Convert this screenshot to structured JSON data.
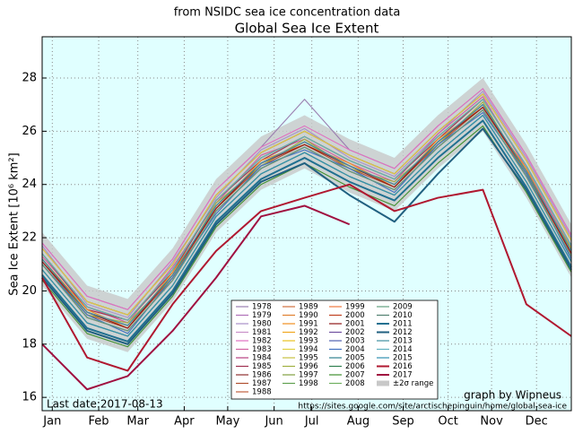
{
  "chart_data": {
    "type": "line",
    "subtitle": "from NSIDC sea ice concentration data",
    "title": "Global Sea Ice Extent",
    "ylabel": "Sea Ice Extent [10⁶ km²]",
    "annotations": [
      "Last date:2017-08-13",
      "graph by Wipneus",
      "https://sites.google.com/site/arctischepinguin/home/global-sea-ice"
    ],
    "x": [
      0,
      31,
      59,
      90,
      120,
      151,
      181,
      212,
      243,
      273,
      304,
      334,
      365
    ],
    "xlim": [
      0,
      365
    ],
    "xticks": [
      {
        "value": 7,
        "label": "Jan"
      },
      {
        "value": 39,
        "label": "Feb"
      },
      {
        "value": 66,
        "label": "Mar"
      },
      {
        "value": 98,
        "label": "Apr"
      },
      {
        "value": 128,
        "label": "May"
      },
      {
        "value": 160,
        "label": "Jun"
      },
      {
        "value": 186,
        "label": "Jul"
      },
      {
        "value": 218,
        "label": "Aug"
      },
      {
        "value": 249,
        "label": "Sep"
      },
      {
        "value": 280,
        "label": "Oct"
      },
      {
        "value": 310,
        "label": "Nov"
      },
      {
        "value": 341,
        "label": "Dec"
      }
    ],
    "ylim": [
      15.5,
      29.55
    ],
    "yticks": [
      16,
      18,
      20,
      22,
      24,
      26,
      28
    ],
    "grid": true,
    "band": {
      "name": "±2σ range",
      "color": "#c8c8c8",
      "upper": [
        22.2,
        20.2,
        19.7,
        21.6,
        24.2,
        25.8,
        26.6,
        25.7,
        25.0,
        26.6,
        28.0,
        25.5,
        22.5
      ],
      "lower": [
        20.2,
        18.2,
        17.7,
        19.6,
        22.2,
        23.8,
        24.6,
        23.7,
        23.0,
        24.6,
        26.0,
        23.5,
        20.5
      ]
    },
    "series": [
      {
        "name": "1978",
        "color": "#9a7fb0",
        "values": [
          21.8,
          19.8,
          19.3,
          21.2,
          23.8,
          25.4,
          27.2,
          25.3,
          24.6,
          26.2,
          27.6,
          25.1,
          22.1
        ]
      },
      {
        "name": "1979",
        "color": "#b070b8",
        "values": [
          21.6,
          19.6,
          19.1,
          21.0,
          23.6,
          25.2,
          26.0,
          25.1,
          24.4,
          26.0,
          27.4,
          24.9,
          21.9
        ]
      },
      {
        "name": "1980",
        "color": "#a890c8",
        "values": [
          21.7,
          19.5,
          19.0,
          21.1,
          23.5,
          25.3,
          26.1,
          25.0,
          24.3,
          25.9,
          27.5,
          25.0,
          22.0
        ]
      },
      {
        "name": "1981",
        "color": "#c890c8",
        "values": [
          21.4,
          19.4,
          18.9,
          20.8,
          23.4,
          25.0,
          25.8,
          24.9,
          24.2,
          25.8,
          27.2,
          24.7,
          21.7
        ]
      },
      {
        "name": "1982",
        "color": "#e070c0",
        "values": [
          21.8,
          19.8,
          19.3,
          21.2,
          23.8,
          25.4,
          26.2,
          25.3,
          24.6,
          26.2,
          27.6,
          25.1,
          22.1
        ]
      },
      {
        "name": "1983",
        "color": "#d060a0",
        "values": [
          21.3,
          19.4,
          18.8,
          20.9,
          23.3,
          25.1,
          25.7,
          24.8,
          24.1,
          25.9,
          27.3,
          24.6,
          21.6
        ]
      },
      {
        "name": "1984",
        "color": "#b84080",
        "values": [
          21.2,
          19.2,
          18.7,
          20.6,
          23.2,
          24.8,
          25.6,
          24.7,
          24.0,
          25.6,
          27.0,
          24.5,
          21.5
        ]
      },
      {
        "name": "1985",
        "color": "#a03050",
        "values": [
          21.4,
          19.3,
          18.9,
          20.7,
          23.4,
          24.9,
          25.8,
          24.9,
          24.2,
          25.7,
          27.2,
          24.7,
          21.7
        ]
      },
      {
        "name": "1986",
        "color": "#903030",
        "values": [
          21.6,
          19.6,
          19.1,
          21.0,
          23.6,
          25.2,
          26.0,
          25.1,
          24.4,
          26.0,
          27.4,
          24.9,
          21.9
        ]
      },
      {
        "name": "1987",
        "color": "#b05030",
        "values": [
          21.1,
          19.1,
          18.6,
          20.5,
          23.1,
          24.7,
          25.5,
          24.6,
          23.9,
          25.5,
          26.9,
          24.4,
          21.4
        ]
      },
      {
        "name": "1988",
        "color": "#c06040",
        "values": [
          21.4,
          19.4,
          18.9,
          20.8,
          23.4,
          25.0,
          25.8,
          24.9,
          24.2,
          25.8,
          27.2,
          24.7,
          21.7
        ]
      },
      {
        "name": "1989",
        "color": "#d07040",
        "values": [
          21.2,
          19.2,
          18.7,
          20.6,
          23.2,
          24.8,
          25.6,
          24.7,
          24.0,
          25.6,
          27.0,
          24.5,
          21.5
        ]
      },
      {
        "name": "1990",
        "color": "#e08030",
        "values": [
          21.4,
          19.4,
          18.9,
          20.8,
          23.4,
          25.0,
          25.8,
          24.9,
          24.2,
          25.8,
          27.2,
          24.7,
          21.7
        ]
      },
      {
        "name": "1991",
        "color": "#f09020",
        "values": [
          21.2,
          19.3,
          18.6,
          20.7,
          23.1,
          24.9,
          25.5,
          24.8,
          23.9,
          25.7,
          26.9,
          24.6,
          21.4
        ]
      },
      {
        "name": "1992",
        "color": "#f0a820",
        "values": [
          21.4,
          19.4,
          18.9,
          20.8,
          23.4,
          25.0,
          25.8,
          24.9,
          24.2,
          25.8,
          27.2,
          24.7,
          21.7
        ]
      },
      {
        "name": "1993",
        "color": "#e8c020",
        "values": [
          21.2,
          19.2,
          18.7,
          20.6,
          23.2,
          24.8,
          25.6,
          24.7,
          24.0,
          25.6,
          27.0,
          24.5,
          21.5
        ]
      },
      {
        "name": "1994",
        "color": "#e0d040",
        "values": [
          21.6,
          19.6,
          19.1,
          21.0,
          23.6,
          25.2,
          26.0,
          25.1,
          24.4,
          26.0,
          27.4,
          24.9,
          21.9
        ]
      },
      {
        "name": "1995",
        "color": "#c8c040",
        "values": [
          21.0,
          19.0,
          18.5,
          20.4,
          23.0,
          24.6,
          25.4,
          24.5,
          23.8,
          25.4,
          26.8,
          24.3,
          21.3
        ]
      },
      {
        "name": "1996",
        "color": "#a0b040",
        "values": [
          21.2,
          19.1,
          18.8,
          20.5,
          23.3,
          24.7,
          25.7,
          24.6,
          24.1,
          25.5,
          27.1,
          24.4,
          21.6
        ]
      },
      {
        "name": "1997",
        "color": "#80a040",
        "values": [
          21.0,
          19.0,
          18.5,
          20.4,
          23.0,
          24.6,
          25.4,
          24.5,
          23.8,
          25.4,
          26.8,
          24.3,
          21.3
        ]
      },
      {
        "name": "1998",
        "color": "#60a050",
        "values": [
          21.4,
          19.4,
          18.9,
          20.8,
          23.4,
          25.0,
          25.8,
          24.9,
          24.2,
          25.8,
          27.2,
          24.7,
          21.7
        ]
      },
      {
        "name": "1999",
        "color": "#f07840",
        "values": [
          21.2,
          19.2,
          18.7,
          20.6,
          23.2,
          24.8,
          25.6,
          24.7,
          24.0,
          25.6,
          27.0,
          24.5,
          21.5
        ]
      },
      {
        "name": "2000",
        "color": "#c04020",
        "values": [
          21.0,
          19.0,
          18.5,
          20.4,
          23.0,
          24.6,
          25.4,
          24.5,
          23.8,
          25.4,
          26.8,
          24.3,
          21.3
        ]
      },
      {
        "name": "2001",
        "color": "#901818",
        "values": [
          21.1,
          19.2,
          18.6,
          20.6,
          23.1,
          24.8,
          25.5,
          24.7,
          23.9,
          25.6,
          26.9,
          24.5,
          21.4
        ]
      },
      {
        "name": "2002",
        "color": "#7050a0",
        "values": [
          21.0,
          19.0,
          18.5,
          20.4,
          23.0,
          24.6,
          25.4,
          24.5,
          23.8,
          25.4,
          26.8,
          24.3,
          21.3
        ]
      },
      {
        "name": "2003",
        "color": "#5060b0",
        "values": [
          21.2,
          19.2,
          18.7,
          20.6,
          23.2,
          24.8,
          25.6,
          24.7,
          24.0,
          25.6,
          27.0,
          24.5,
          21.5
        ]
      },
      {
        "name": "2004",
        "color": "#4070c0",
        "values": [
          21.0,
          19.1,
          18.4,
          20.5,
          22.9,
          24.7,
          25.3,
          24.6,
          23.7,
          25.5,
          26.7,
          24.4,
          21.2
        ]
      },
      {
        "name": "2005",
        "color": "#308090",
        "values": [
          20.8,
          18.8,
          18.3,
          20.2,
          22.8,
          24.4,
          25.2,
          24.3,
          23.6,
          25.2,
          26.6,
          24.1,
          21.1
        ]
      },
      {
        "name": "2006",
        "color": "#308050",
        "values": [
          20.6,
          18.6,
          18.1,
          20.0,
          22.6,
          24.2,
          25.0,
          24.1,
          23.4,
          25.0,
          26.4,
          23.9,
          20.9
        ]
      },
      {
        "name": "2007",
        "color": "#409030",
        "values": [
          20.4,
          18.4,
          17.9,
          19.8,
          22.4,
          24.0,
          24.8,
          23.9,
          23.2,
          24.8,
          26.2,
          23.7,
          20.7
        ]
      },
      {
        "name": "2008",
        "color": "#70b060",
        "values": [
          20.8,
          18.8,
          18.3,
          20.2,
          22.8,
          24.4,
          25.2,
          24.3,
          23.6,
          25.2,
          26.6,
          24.1,
          21.1
        ]
      },
      {
        "name": "2009",
        "color": "#60a080",
        "values": [
          21.0,
          19.0,
          18.5,
          20.4,
          23.0,
          24.6,
          25.4,
          24.5,
          23.8,
          25.4,
          26.8,
          24.3,
          21.3
        ]
      },
      {
        "name": "2010",
        "color": "#508070",
        "values": [
          20.8,
          18.8,
          18.3,
          20.2,
          22.8,
          24.4,
          25.2,
          24.3,
          23.6,
          25.2,
          26.6,
          24.1,
          21.1
        ]
      },
      {
        "name": "2011",
        "color": "#207090",
        "linewidth": 2,
        "values": [
          20.6,
          18.6,
          18.1,
          20.0,
          22.6,
          24.2,
          25.0,
          24.1,
          23.4,
          25.0,
          26.4,
          23.9,
          20.9
        ]
      },
      {
        "name": "2012",
        "color": "#206080",
        "linewidth": 2,
        "values": [
          20.5,
          18.5,
          18.0,
          19.9,
          22.5,
          24.1,
          24.8,
          23.6,
          22.6,
          24.4,
          26.1,
          23.8,
          20.8
        ]
      },
      {
        "name": "2013",
        "color": "#4090a0",
        "values": [
          21.2,
          19.2,
          18.7,
          20.6,
          23.2,
          24.8,
          25.6,
          24.7,
          24.0,
          25.6,
          27.0,
          24.5,
          21.5
        ]
      },
      {
        "name": "2014",
        "color": "#60b0c0",
        "values": [
          21.4,
          19.4,
          18.9,
          20.8,
          23.4,
          25.0,
          25.8,
          24.9,
          24.2,
          25.8,
          27.2,
          24.7,
          21.7
        ]
      },
      {
        "name": "2015",
        "color": "#3090b0",
        "values": [
          20.8,
          18.8,
          18.3,
          20.2,
          22.8,
          24.4,
          25.2,
          24.3,
          23.6,
          25.2,
          26.6,
          24.1,
          21.1
        ]
      },
      {
        "name": "2016",
        "color": "#b01830",
        "linewidth": 2,
        "values": [
          20.5,
          17.5,
          17.0,
          19.5,
          21.5,
          23.0,
          23.5,
          24.0,
          23.0,
          23.5,
          23.8,
          19.5,
          18.3
        ]
      },
      {
        "name": "2017",
        "color": "#a01040",
        "linewidth": 2,
        "values": [
          18.0,
          16.3,
          16.8,
          18.5,
          20.5,
          22.8,
          23.2,
          22.5,
          null,
          null,
          null,
          null,
          null
        ]
      }
    ]
  }
}
